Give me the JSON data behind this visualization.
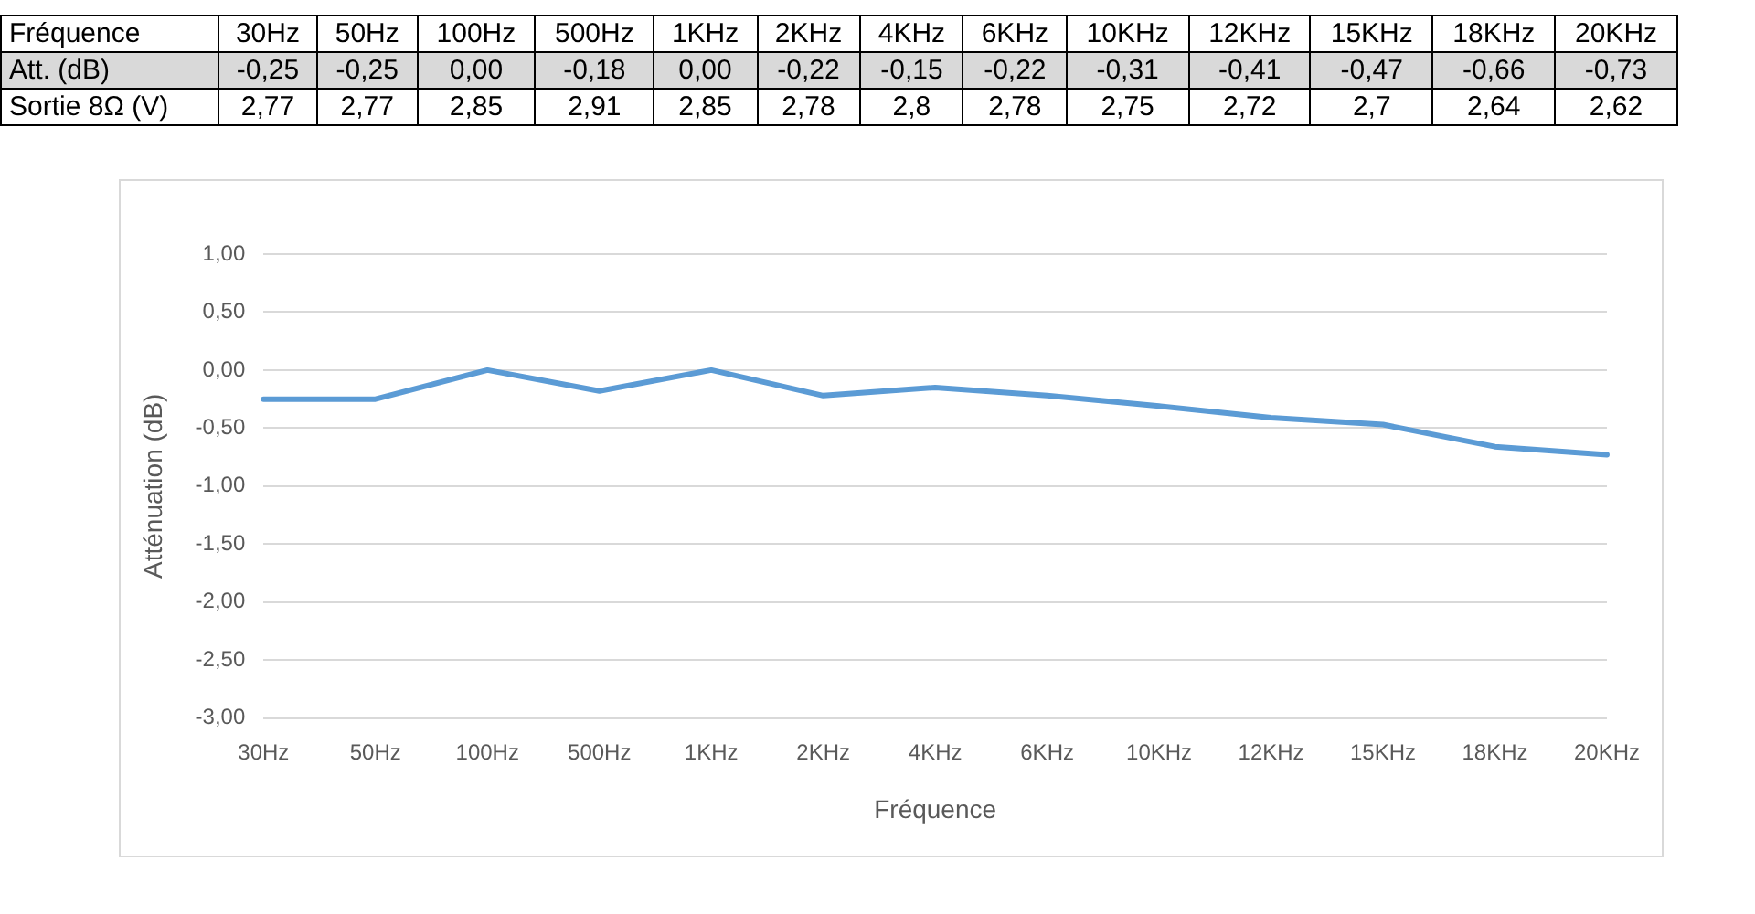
{
  "chart_data": [
    {
      "type": "other",
      "xlabel": "Fréquence",
      "categories": [
        "30Hz",
        "50Hz",
        "100Hz",
        "500Hz",
        "1KHz",
        "2KHz",
        "4KHz",
        "6KHz",
        "10KHz",
        "12KHz",
        "15KHz",
        "18KHz",
        "20KHz"
      ],
      "series": [
        {
          "name": "Att. (dB)",
          "values": [
            -0.25,
            -0.25,
            0,
            -0.18,
            0,
            -0.22,
            -0.15,
            -0.22,
            -0.31,
            -0.41,
            -0.47,
            -0.66,
            -0.73
          ],
          "value_labels": [
            "-0,25",
            "-0,25",
            "0,00",
            "-0,18",
            "0,00",
            "-0,22",
            "-0,15",
            "-0,22",
            "-0,31",
            "-0,41",
            "-0,47",
            "-0,66",
            "-0,73"
          ]
        },
        {
          "name": "Sortie 8Ω (V)",
          "values": [
            2.77,
            2.77,
            2.85,
            2.91,
            2.85,
            2.78,
            2.8,
            2.78,
            2.75,
            2.72,
            2.7,
            2.64,
            2.62
          ],
          "value_labels": [
            "2,77",
            "2,77",
            "2,85",
            "2,91",
            "2,85",
            "2,78",
            "2,8",
            "2,78",
            "2,75",
            "2,72",
            "2,7",
            "2,64",
            "2,62"
          ]
        }
      ]
    },
    {
      "type": "line",
      "xlabel": "Fréquence",
      "ylabel": "Atténuation (dB)",
      "categories": [
        "30Hz",
        "50Hz",
        "100Hz",
        "500Hz",
        "1KHz",
        "2KHz",
        "4KHz",
        "6KHz",
        "10KHz",
        "12KHz",
        "15KHz",
        "18KHz",
        "20KHz"
      ],
      "series": [
        {
          "color": "#5b9bd5",
          "values": [
            -0.25,
            -0.25,
            0,
            -0.18,
            0,
            -0.22,
            -0.15,
            -0.22,
            -0.31,
            -0.41,
            -0.47,
            -0.66,
            -0.73
          ]
        }
      ],
      "ylim": [
        -3,
        1
      ],
      "yticks": [
        {
          "value": -3,
          "label": "-3,00"
        },
        {
          "value": -2.5,
          "label": "-2,50"
        },
        {
          "value": -2,
          "label": "-2,00"
        },
        {
          "value": -1.5,
          "label": "-1,50"
        },
        {
          "value": -1,
          "label": "-1,00"
        },
        {
          "value": -0.5,
          "label": "-0,50"
        },
        {
          "value": 0,
          "label": "0,00"
        },
        {
          "value": 0.5,
          "label": "0,50"
        },
        {
          "value": 1,
          "label": "1,00"
        }
      ],
      "grid": "y",
      "legend": false,
      "marker": "none",
      "line_style": "solid"
    }
  ]
}
